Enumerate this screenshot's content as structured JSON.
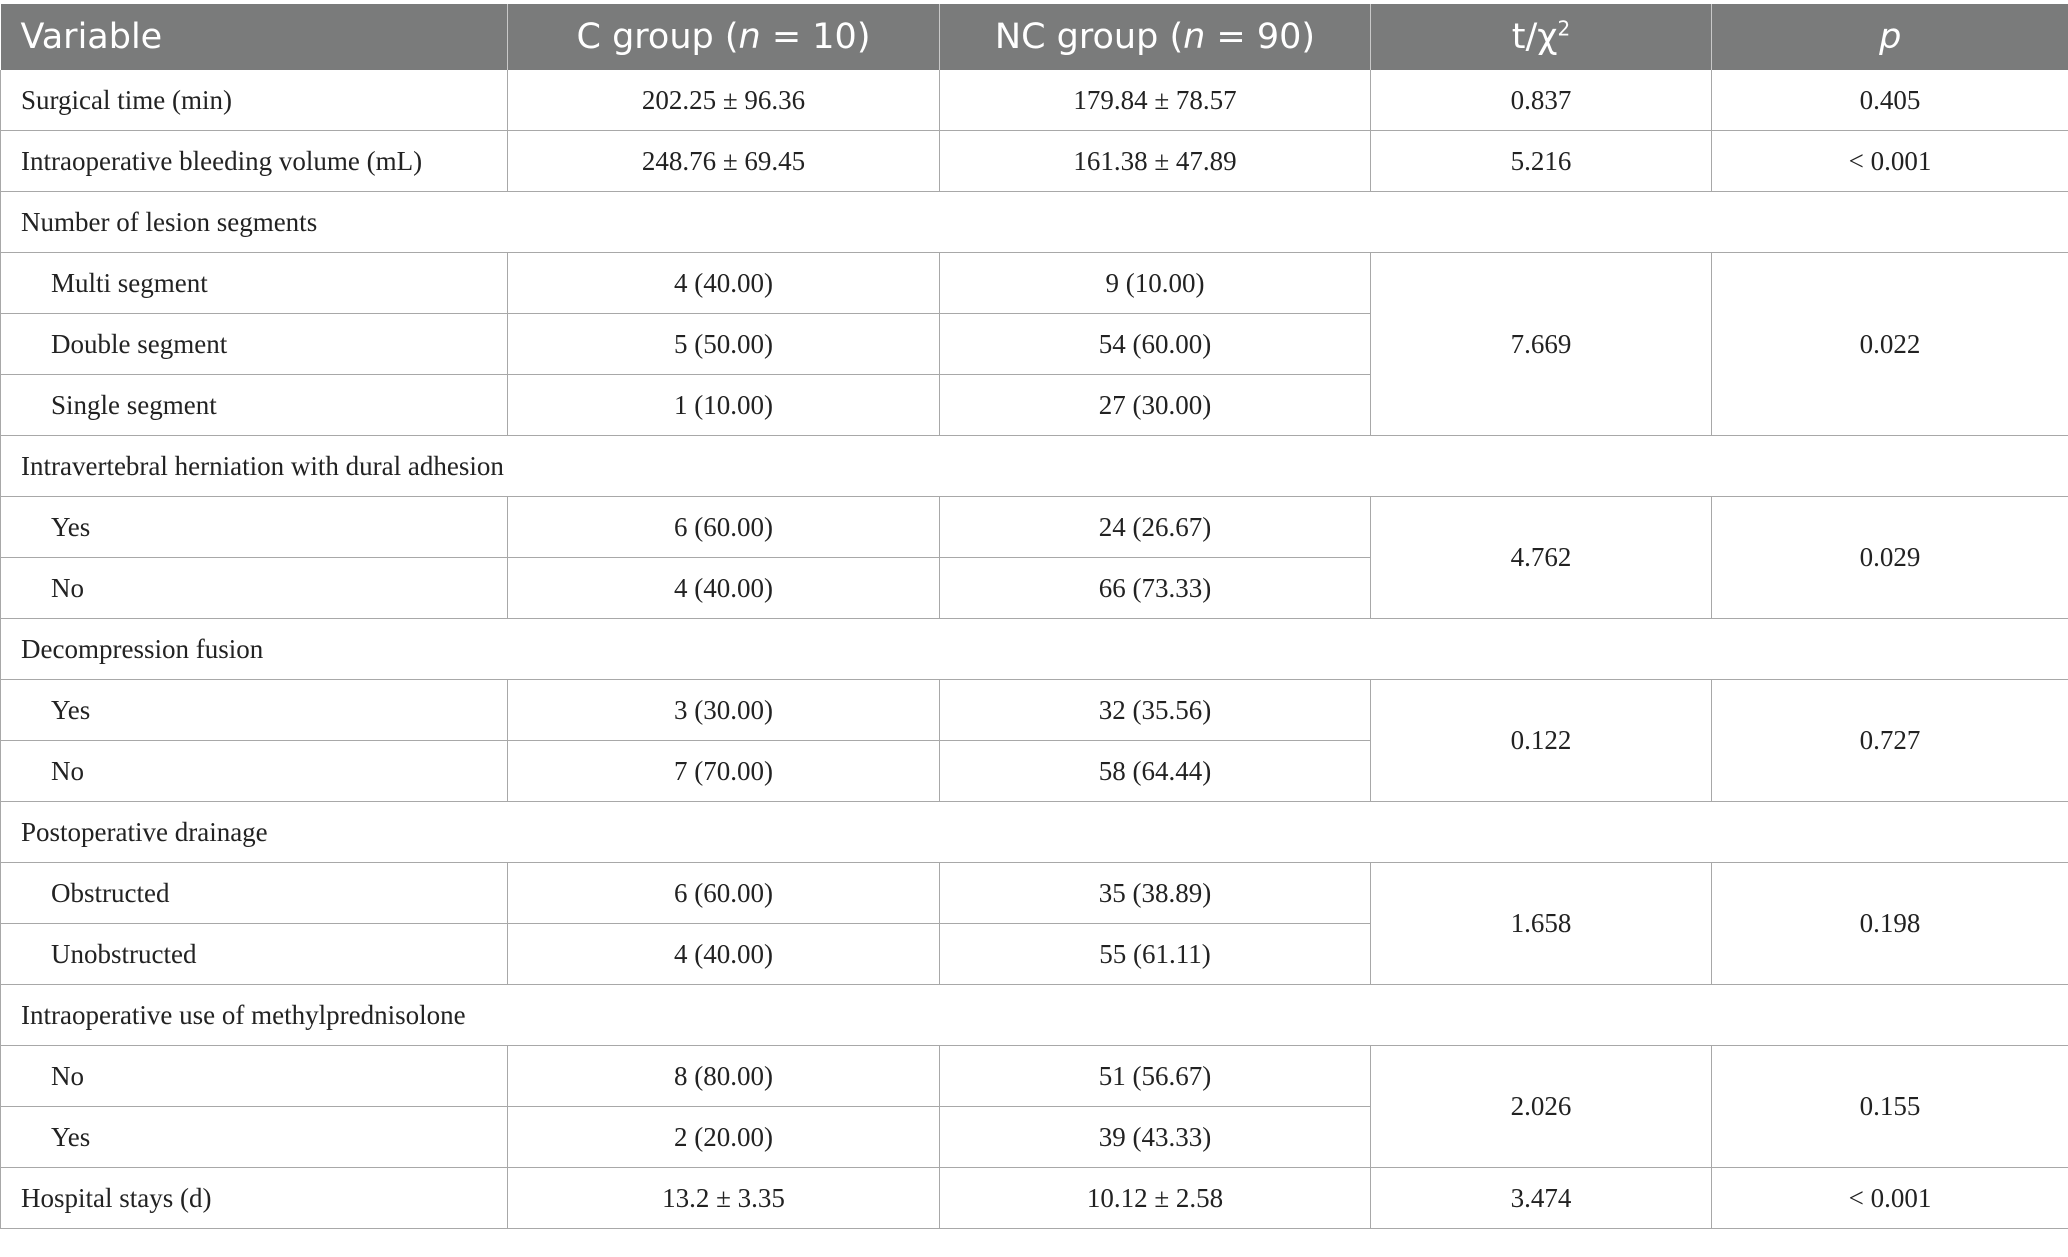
{
  "table": {
    "headers": {
      "variable": "Variable",
      "c_group_prefix": "C group (",
      "c_group_n": "n",
      "c_group_suffix": " = 10)",
      "nc_group_prefix": "NC group (",
      "nc_group_n": "n",
      "nc_group_suffix": " = 90)",
      "stat_base": "t/χ",
      "stat_sup": "2",
      "p": "p"
    },
    "surgical_time": {
      "label": "Surgical time (min)",
      "c": "202.25 ± 96.36",
      "nc": "179.84 ± 78.57",
      "stat": "0.837",
      "p": "0.405"
    },
    "bleeding": {
      "label": "Intraoperative bleeding volume (mL)",
      "c": "248.76 ± 69.45",
      "nc": "161.38 ± 47.89",
      "stat": "5.216",
      "p": "< 0.001"
    },
    "lesion_segments": {
      "label": "Number of lesion segments",
      "stat": "7.669",
      "p": "0.022",
      "rows": [
        {
          "label": "Multi segment",
          "c": "4 (40.00)",
          "nc": "9 (10.00)"
        },
        {
          "label": "Double segment",
          "c": "5 (50.00)",
          "nc": "54 (60.00)"
        },
        {
          "label": "Single segment",
          "c": "1 (10.00)",
          "nc": "27 (30.00)"
        }
      ]
    },
    "herniation": {
      "label": "Intravertebral herniation with dural adhesion",
      "stat": "4.762",
      "p": "0.029",
      "rows": [
        {
          "label": "Yes",
          "c": "6 (60.00)",
          "nc": "24 (26.67)"
        },
        {
          "label": "No",
          "c": "4 (40.00)",
          "nc": "66 (73.33)"
        }
      ]
    },
    "decompression": {
      "label": "Decompression fusion",
      "stat": "0.122",
      "p": "0.727",
      "rows": [
        {
          "label": "Yes",
          "c": "3 (30.00)",
          "nc": "32 (35.56)"
        },
        {
          "label": "No",
          "c": "7 (70.00)",
          "nc": "58 (64.44)"
        }
      ]
    },
    "drainage": {
      "label": "Postoperative drainage",
      "stat": "1.658",
      "p": "0.198",
      "rows": [
        {
          "label": "Obstructed",
          "c": "6 (60.00)",
          "nc": "35 (38.89)"
        },
        {
          "label": "Unobstructed",
          "c": "4 (40.00)",
          "nc": "55 (61.11)"
        }
      ]
    },
    "methylprednisolone": {
      "label": "Intraoperative use of methylprednisolone",
      "stat": "2.026",
      "p": "0.155",
      "rows": [
        {
          "label": "No",
          "c": "8 (80.00)",
          "nc": "51 (56.67)"
        },
        {
          "label": "Yes",
          "c": "2 (20.00)",
          "nc": "39 (43.33)"
        }
      ]
    },
    "hospital_stays": {
      "label": "Hospital stays (d)",
      "c": "13.2 ± 3.35",
      "nc": "10.12 ± 2.58",
      "stat": "3.474",
      "p": "< 0.001"
    }
  }
}
